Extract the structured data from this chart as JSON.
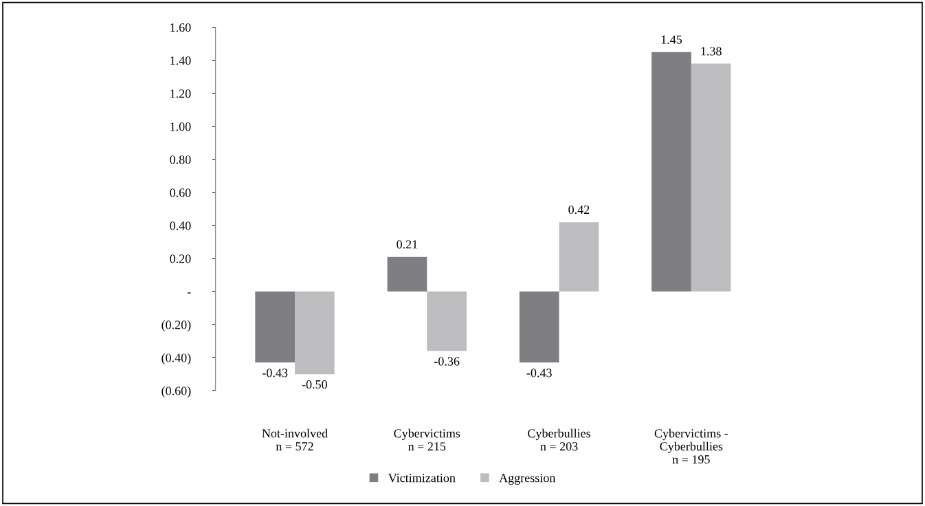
{
  "chart_data": {
    "type": "bar",
    "categories": [
      "Not-involved\nn = 572",
      "Cybervictims\nn = 215",
      "Cyberbullies\nn = 203",
      "Cybervictims -\nCyberbullies\nn = 195"
    ],
    "series": [
      {
        "name": "Victimization",
        "color": "#7f7f83",
        "values": [
          -0.43,
          0.21,
          -0.43,
          1.45
        ],
        "value_labels": [
          "-0.43",
          "0.21",
          "-0.43",
          "1.45"
        ]
      },
      {
        "name": "Aggression",
        "color": "#bdbdbf",
        "values": [
          -0.5,
          -0.36,
          0.42,
          1.38
        ],
        "value_labels": [
          "-0.50",
          "-0.36",
          "0.42",
          "1.38"
        ]
      }
    ],
    "ylim": [
      -0.6,
      1.6
    ],
    "yticks": [
      {
        "value": -0.6,
        "label": "(0.60)"
      },
      {
        "value": -0.4,
        "label": "(0.40)"
      },
      {
        "value": -0.2,
        "label": "(0.20)"
      },
      {
        "value": 0,
        "label": "-"
      },
      {
        "value": 0.2,
        "label": "0.20"
      },
      {
        "value": 0.4,
        "label": "0.40"
      },
      {
        "value": 0.6,
        "label": "0.60"
      },
      {
        "value": 0.8,
        "label": "0.80"
      },
      {
        "value": 1.0,
        "label": "1.00"
      },
      {
        "value": 1.2,
        "label": "1.20"
      },
      {
        "value": 1.4,
        "label": "1.40"
      },
      {
        "value": 1.6,
        "label": "1.60"
      }
    ],
    "grid": false,
    "legend": "bottom"
  }
}
